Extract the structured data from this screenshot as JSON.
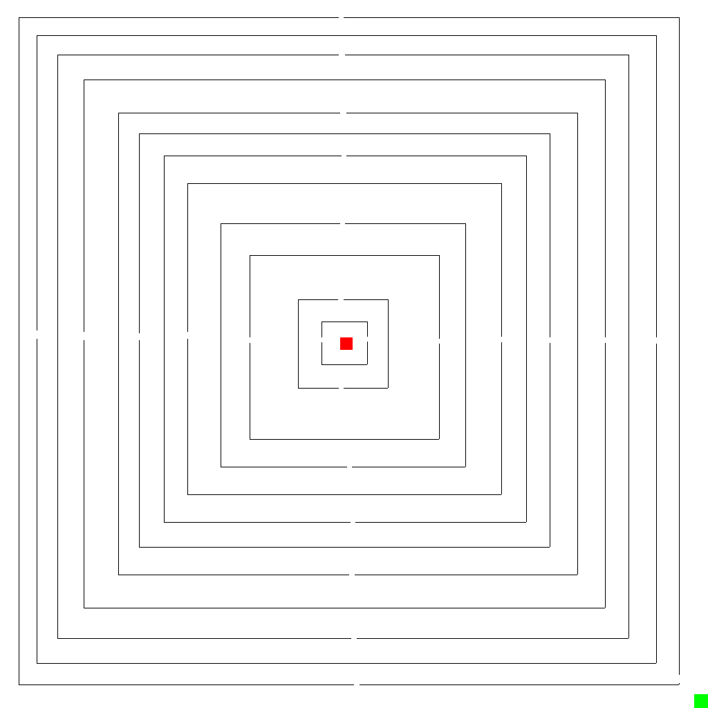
{
  "maze": {
    "type": "concentric-square-maze",
    "ring_count": 12,
    "background_color": "#ffffff",
    "wall_color": "#000000",
    "goal": {
      "color": "#ff0000"
    },
    "player": {
      "color": "#00ff00"
    }
  }
}
